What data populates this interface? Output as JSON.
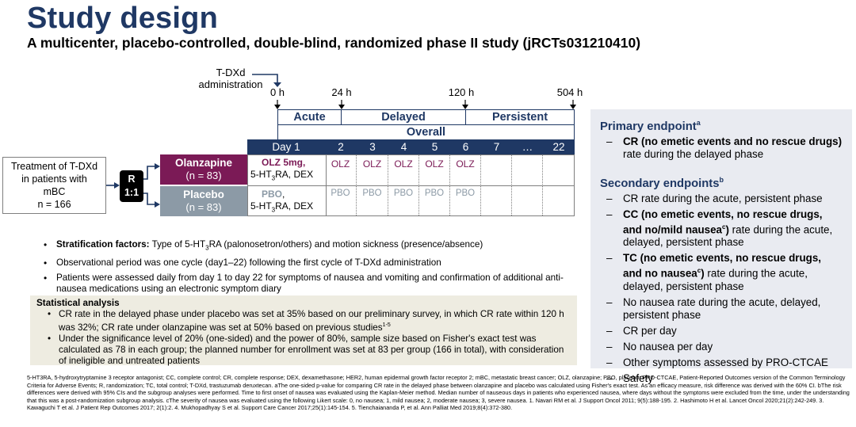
{
  "title": "Study design",
  "subtitle": "A multicenter, placebo-controlled, double-blind, randomized phase II study (jRCTs031210410)",
  "admin_label": "T-DXd administration",
  "ticks": [
    "0 h",
    "24 h",
    "120 h",
    "504 h"
  ],
  "phases": {
    "acute": "Acute",
    "delayed": "Delayed",
    "persistent": "Persistent",
    "overall": "Overall"
  },
  "days": [
    "Day 1",
    "2",
    "3",
    "4",
    "5",
    "6",
    "7",
    "…",
    "22"
  ],
  "treatment": {
    "line1": "Treatment of T-DXd",
    "line2": "in patients with",
    "line3": "mBC",
    "line4": "n = 166"
  },
  "randomize": {
    "line1": "R",
    "line2": "1:1"
  },
  "arms": [
    {
      "name": "Olanzapine",
      "n": "(n = 83)",
      "day1_bold": "OLZ 5mg",
      "day1_rest": ", 5-HT3RA, DEX",
      "day1_line2_pre": "5-HT",
      "day1_line2_sub": "3",
      "day1_line2_post": "RA, DEX",
      "cells": [
        "OLZ",
        "OLZ",
        "OLZ",
        "OLZ",
        "OLZ"
      ]
    },
    {
      "name": "Placebo",
      "n": "(n = 83)",
      "day1_bold": "PBO",
      "day1_line2_pre": "5-HT",
      "day1_line2_sub": "3",
      "day1_line2_post": "RA, DEX",
      "cells": [
        "PBO",
        "PBO",
        "PBO",
        "PBO",
        "PBO"
      ]
    }
  ],
  "bullets": {
    "b1_bold": "Stratification factors:",
    "b1_pre": " Type of 5-HT",
    "b1_sub": "3",
    "b1_post": "RA (palonosetron/others) and motion sickness (presence/absence)",
    "b2": "Observational period was one cycle (day1–22) following the first cycle of T-DXd administration",
    "b3": "Patients were assessed daily from day 1 to day 22 for symptoms of nausea and vomiting and confirmation of additional anti-nausea medications using an electronic symptom diary"
  },
  "stat": {
    "heading": "Statistical analysis",
    "s1": "CR rate in the delayed phase under placebo was set at 35% based on our preliminary survey, in which CR rate within 120 h was 32%; CR rate under olanzapine was set at 50% based on previous studies",
    "s1_sup": "1-5",
    "s2": "Under the significance level of 20% (one-sided) and the power of 80%, sample size based on Fisher's exact test was calculated as 78 in each group; the planned number for enrollment was set at 83 per group (166 in total), with consideration of ineligible and untreated patients"
  },
  "endpoints": {
    "primary_heading": "Primary endpoint",
    "primary_sup": "a",
    "primary_bold": "CR (no emetic events and no rescue drugs)",
    "primary_rest": " rate during the delayed phase",
    "secondary_heading": "Secondary endpoints",
    "secondary_sup": "b",
    "s1": "CR rate during the acute, persistent phase",
    "s2_bold": "CC (no emetic events, no rescue drugs, and no/mild nausea",
    "s2_sup": "c",
    "s2_close": ")",
    "s2_rest": " rate during the acute, delayed, persistent phase",
    "s3_bold": "TC (no emetic events, no rescue drugs, and no nausea",
    "s3_sup": "c",
    "s3_close": ")",
    "s3_rest": " rate during the acute, delayed, persistent phase",
    "s4": "No nausea rate during the acute, delayed, persistent phase",
    "s5": "CR per day",
    "s6": "No nausea per day",
    "s7": "Other symptoms assessed by PRO-CTCAE",
    "s8": "Safety"
  },
  "footnote": "5-HT3RA, 5-hydroxytryptamine 3 receptor antagonist; CC, complete control; CR, complete response; DEX, dexamethasone; HER2, human epidermal growth factor receptor 2; mBC, metastatic breast cancer; OLZ, olanzapine; PBO, placebo; PRO-CTCAE, Patient-Reported Outcomes version of the Common Terminology Criteria for Adverse Events; R, randomization; TC, total control; T-DXd, trastuzumab deruxtecan. aThe one-sided p-value for comparing CR rate in the delayed phase between olanzapine and placebo was calculated using Fisher's exact test. As an efficacy measure, risk difference was derived with the 60% CI. bThe risk differences were derived with 95% CIs and the subgroup analyses were performed. Time to first onset of nausea was evaluated using the Kaplan-Meier method. Median number of nauseous days in patients who experienced nausea, where days without the symptoms were excluded from the time, under the understanding that this was a post-randomization subgroup analysis. cThe severity of nausea was evaluated using the following Likert scale: 0, no nausea; 1, mild nausea; 2, moderate nausea; 3, severe nausea. 1. Navari RM et al. J Support Oncol 2011; 9(5):188-195. 2. Hashimoto H et al. Lancet Oncol 2020;21(2):242-249. 3. Kawaguchi T et al. J Patient Rep Outcomes 2017; 2(1):2. 4. Mukhopadhyay S et al. Support Care Cancer 2017;25(1):145-154. 5. Tienchaiananda P, et al. Ann Palliat Med 2019;8(4):372-380.",
  "colors": {
    "navy": "#1f3864",
    "olanzapine": "#7b1a56",
    "placebo": "#8c9aa6",
    "panel": "#e9ebf1",
    "stat_bg": "#eeece1"
  }
}
